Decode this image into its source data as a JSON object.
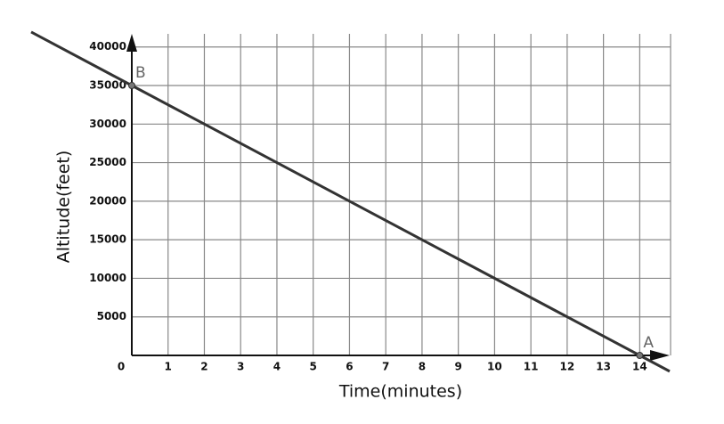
{
  "chart_data": {
    "type": "line",
    "x_label": "Time(minutes)",
    "y_label": "Altitude(feet)",
    "x": [
      0,
      14
    ],
    "values": [
      35000,
      0
    ],
    "color": "#333333",
    "xlim": [
      0,
      14.85
    ],
    "ylim": [
      0,
      41700
    ],
    "xticks": [
      0,
      1,
      2,
      3,
      4,
      5,
      6,
      7,
      8,
      9,
      10,
      11,
      12,
      13,
      14
    ],
    "yticks": [
      5000,
      10000,
      15000,
      20000,
      25000,
      30000,
      35000,
      40000
    ],
    "grid": true,
    "points": [
      {
        "label": "B",
        "x": 0,
        "y": 35000
      },
      {
        "label": "A",
        "x": 14,
        "y": 0
      }
    ]
  }
}
